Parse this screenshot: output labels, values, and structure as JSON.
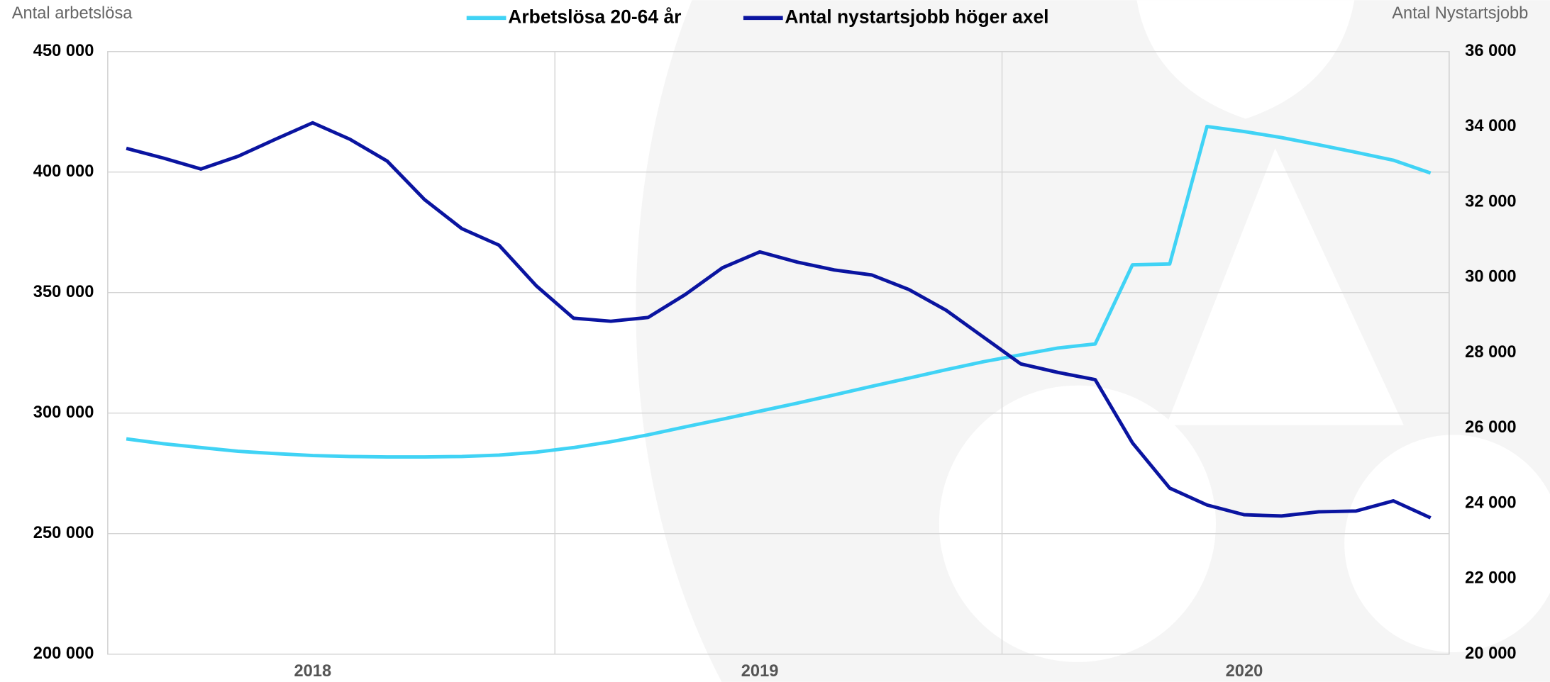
{
  "chart_data": {
    "type": "line",
    "y_label": "Antal arbetslösa",
    "y2_label": "Antal Nystartsjobb",
    "categories": [
      null,
      null,
      null,
      null,
      null,
      "2018",
      null,
      null,
      null,
      null,
      null,
      null,
      null,
      null,
      null,
      null,
      null,
      "2019",
      null,
      null,
      null,
      null,
      null,
      null,
      null,
      null,
      null,
      null,
      null,
      null,
      "2020",
      null,
      null,
      null,
      null,
      null
    ],
    "series": [
      {
        "name": "Arbetslösa 20-64 år",
        "color": "#40d3f5",
        "values": [
          289300,
          287300,
          285700,
          284200,
          283200,
          282400,
          282000,
          281800,
          281800,
          282000,
          282600,
          283800,
          285700,
          288100,
          291000,
          294300,
          297500,
          300800,
          304100,
          307600,
          311100,
          314500,
          318000,
          321300,
          324200,
          327000,
          328700,
          361500,
          361900,
          418900,
          416800,
          414300,
          411300,
          408200,
          404900,
          399600
        ]
      },
      {
        "name": "Antal nystartsjobb höger axel",
        "color": "#0a14a0",
        "axis": "y2",
        "values": [
          33430,
          33170,
          32880,
          33220,
          33670,
          34110,
          33670,
          33090,
          32070,
          31300,
          30860,
          29780,
          28920,
          28840,
          28940,
          29550,
          30260,
          30680,
          30410,
          30200,
          30070,
          29680,
          29130,
          28420,
          27710,
          27480,
          27290,
          25610,
          24410,
          23960,
          23700,
          23670,
          23780,
          23800,
          24070,
          23620
        ]
      }
    ],
    "ylim": [
      200000,
      450000
    ],
    "yticks": [
      {
        "value": 200000,
        "label": "200 000"
      },
      {
        "value": 250000,
        "label": "250 000"
      },
      {
        "value": 300000,
        "label": "300 000"
      },
      {
        "value": 350000,
        "label": "350 000"
      },
      {
        "value": 400000,
        "label": "400 000"
      },
      {
        "value": 450000,
        "label": "450 000"
      }
    ],
    "y2lim": [
      20000,
      36000
    ],
    "y2ticks": [
      {
        "value": 20000,
        "label": "20 000"
      },
      {
        "value": 22000,
        "label": "22 000"
      },
      {
        "value": 24000,
        "label": "24 000"
      },
      {
        "value": 26000,
        "label": "26 000"
      },
      {
        "value": 28000,
        "label": "28 000"
      },
      {
        "value": 30000,
        "label": "30 000"
      },
      {
        "value": 32000,
        "label": "32 000"
      },
      {
        "value": 34000,
        "label": "34 000"
      },
      {
        "value": 36000,
        "label": "36 000"
      }
    ],
    "grid": true
  }
}
